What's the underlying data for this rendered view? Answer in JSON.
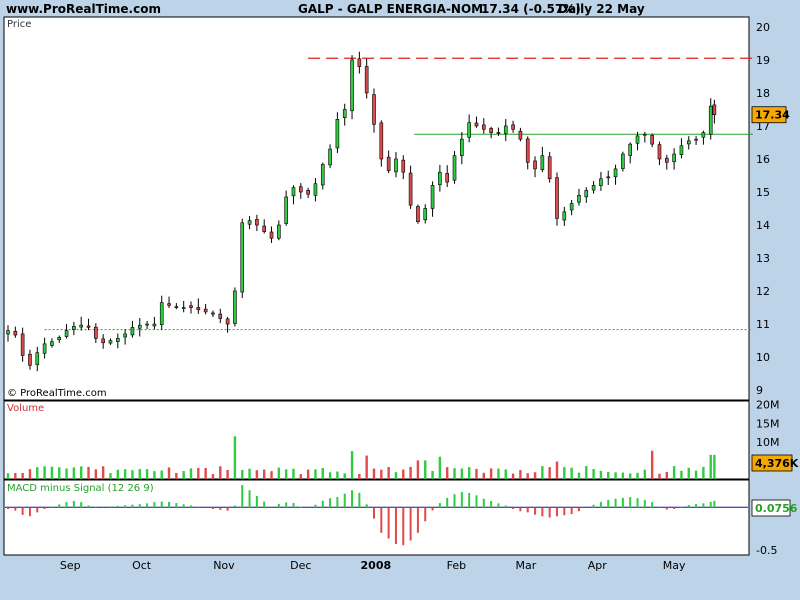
{
  "header": {
    "site": "www.ProRealTime.com",
    "instrument": "GALP - GALP ENERGIA-NOM",
    "quote": "17.34 (-0.57%)",
    "period": "Daily  22 May"
  },
  "watermark": "© ProRealTime.com",
  "colors": {
    "background": "#bcd3e8",
    "panel": "#ffffff",
    "up": "#2ecc40",
    "down": "#e04a4a",
    "resistance": "#e02020",
    "support": "#2aa02a",
    "signal_line": "#1010a0",
    "badge": "#f5a800"
  },
  "chart_data": [
    {
      "type": "candlestick",
      "panel": "price",
      "label": "Price",
      "ylim": [
        8.7,
        20.3
      ],
      "yticks": [
        "20",
        "19",
        "18",
        "17",
        "16",
        "15",
        "14",
        "13",
        "12",
        "11",
        "10",
        "9"
      ],
      "last_value_badge": "17.34",
      "x_months": [
        "Sep",
        "Oct",
        "Nov",
        "Dec",
        "2008",
        "Feb",
        "Mar",
        "Apr",
        "May"
      ],
      "reference_lines": [
        {
          "style": "dashed",
          "color": "resistance",
          "value": 19.05
        },
        {
          "style": "solid",
          "color": "support",
          "value": 16.75
        },
        {
          "style": "dotted",
          "color": "support",
          "value": 10.83
        }
      ],
      "close_path": [
        [
          0,
          10.8
        ],
        [
          6,
          10.6
        ],
        [
          10,
          9.5
        ],
        [
          14,
          10.0
        ],
        [
          20,
          10.4
        ],
        [
          26,
          10.5
        ],
        [
          32,
          10.8
        ],
        [
          38,
          11.0
        ],
        [
          44,
          10.9
        ],
        [
          50,
          10.4
        ],
        [
          56,
          10.5
        ],
        [
          62,
          10.6
        ],
        [
          68,
          10.9
        ],
        [
          74,
          11.0
        ],
        [
          80,
          11.0
        ],
        [
          82,
          11.7
        ],
        [
          86,
          11.6
        ],
        [
          92,
          11.5
        ],
        [
          100,
          11.5
        ],
        [
          106,
          11.4
        ],
        [
          112,
          11.3
        ],
        [
          118,
          11.1
        ],
        [
          122,
          10.9
        ],
        [
          124,
          12.0
        ],
        [
          125,
          15.2
        ],
        [
          127,
          14.0
        ],
        [
          130,
          14.2
        ],
        [
          136,
          14.0
        ],
        [
          140,
          13.8
        ],
        [
          146,
          13.5
        ],
        [
          150,
          14.5
        ],
        [
          154,
          15.2
        ],
        [
          160,
          15.0
        ],
        [
          166,
          14.9
        ],
        [
          170,
          15.6
        ],
        [
          176,
          16.3
        ],
        [
          180,
          17.2
        ],
        [
          182,
          17.0
        ],
        [
          186,
          18.0
        ],
        [
          188,
          19.0
        ],
        [
          190,
          19.4
        ],
        [
          192,
          18.8
        ],
        [
          194,
          18.5
        ],
        [
          196,
          18.0
        ],
        [
          198,
          17.6
        ],
        [
          202,
          16.5
        ],
        [
          206,
          15.5
        ],
        [
          210,
          15.8
        ],
        [
          214,
          16.2
        ],
        [
          218,
          15.0
        ],
        [
          222,
          14.2
        ],
        [
          224,
          14.1
        ],
        [
          228,
          14.5
        ],
        [
          232,
          15.2
        ],
        [
          236,
          15.6
        ],
        [
          240,
          15.3
        ],
        [
          244,
          16.1
        ],
        [
          248,
          16.6
        ],
        [
          252,
          17.1
        ],
        [
          256,
          17.0
        ],
        [
          260,
          16.9
        ],
        [
          264,
          16.8
        ],
        [
          268,
          16.8
        ],
        [
          272,
          17.0
        ],
        [
          276,
          16.9
        ],
        [
          280,
          16.6
        ],
        [
          284,
          15.9
        ],
        [
          288,
          15.7
        ],
        [
          292,
          16.1
        ],
        [
          296,
          15.4
        ],
        [
          300,
          14.2
        ],
        [
          302,
          14.3
        ],
        [
          306,
          14.5
        ],
        [
          310,
          14.8
        ],
        [
          314,
          15.0
        ],
        [
          318,
          15.1
        ],
        [
          322,
          15.3
        ],
        [
          326,
          15.5
        ],
        [
          330,
          15.4
        ],
        [
          334,
          16.0
        ],
        [
          338,
          16.3
        ],
        [
          342,
          16.6
        ],
        [
          346,
          16.8
        ],
        [
          350,
          16.7
        ],
        [
          354,
          16.2
        ],
        [
          358,
          15.8
        ],
        [
          362,
          16.0
        ],
        [
          366,
          16.3
        ],
        [
          370,
          16.5
        ],
        [
          374,
          16.6
        ],
        [
          378,
          16.6
        ],
        [
          380,
          16.8
        ],
        [
          384,
          17.6
        ],
        [
          386,
          17.34
        ]
      ]
    },
    {
      "type": "bar",
      "panel": "volume",
      "label": "Volume",
      "ylim": [
        0,
        21
      ],
      "yticks": [
        "20M",
        "15M",
        "10M"
      ],
      "last_value_badge": "4,376K",
      "spikes": [
        {
          "t": 124,
          "value": 21.0
        },
        {
          "t": 125,
          "value": 11.5
        },
        {
          "t": 188,
          "value": 7.5
        },
        {
          "t": 196,
          "value": 6.3
        },
        {
          "t": 226,
          "value": 5.0
        },
        {
          "t": 236,
          "value": 6.0
        },
        {
          "t": 300,
          "value": 4.7
        },
        {
          "t": 352,
          "value": 7.6
        },
        {
          "t": 384,
          "value": 6.5
        }
      ]
    },
    {
      "type": "histogram",
      "panel": "macd",
      "label": "MACD minus Signal (12 26 9)",
      "ylim": [
        -0.56,
        0.32
      ],
      "yticks": [
        "-0.5"
      ],
      "last_value_badge": "0.0756",
      "path": [
        [
          0,
          -0.02
        ],
        [
          6,
          -0.05
        ],
        [
          10,
          -0.13
        ],
        [
          14,
          -0.08
        ],
        [
          20,
          -0.02
        ],
        [
          26,
          0.02
        ],
        [
          32,
          0.06
        ],
        [
          38,
          0.08
        ],
        [
          44,
          0.02
        ],
        [
          50,
          -0.01
        ],
        [
          56,
          0.01
        ],
        [
          62,
          0.02
        ],
        [
          68,
          0.03
        ],
        [
          74,
          0.04
        ],
        [
          80,
          0.06
        ],
        [
          86,
          0.07
        ],
        [
          92,
          0.05
        ],
        [
          100,
          0.02
        ],
        [
          106,
          0.0
        ],
        [
          112,
          -0.02
        ],
        [
          120,
          -0.04
        ],
        [
          124,
          0.02
        ],
        [
          128,
          0.26
        ],
        [
          132,
          0.2
        ],
        [
          138,
          0.1
        ],
        [
          144,
          0.0
        ],
        [
          150,
          0.06
        ],
        [
          156,
          0.05
        ],
        [
          162,
          -0.02
        ],
        [
          168,
          0.03
        ],
        [
          174,
          0.1
        ],
        [
          180,
          0.12
        ],
        [
          186,
          0.18
        ],
        [
          190,
          0.22
        ],
        [
          194,
          0.12
        ],
        [
          198,
          -0.05
        ],
        [
          204,
          -0.3
        ],
        [
          210,
          -0.4
        ],
        [
          214,
          -0.46
        ],
        [
          218,
          -0.43
        ],
        [
          222,
          -0.35
        ],
        [
          226,
          -0.25
        ],
        [
          230,
          -0.08
        ],
        [
          236,
          0.05
        ],
        [
          242,
          0.14
        ],
        [
          248,
          0.18
        ],
        [
          254,
          0.16
        ],
        [
          260,
          0.1
        ],
        [
          266,
          0.06
        ],
        [
          272,
          0.02
        ],
        [
          278,
          -0.04
        ],
        [
          284,
          -0.06
        ],
        [
          290,
          -0.1
        ],
        [
          296,
          -0.12
        ],
        [
          302,
          -0.1
        ],
        [
          308,
          -0.08
        ],
        [
          314,
          -0.03
        ],
        [
          320,
          0.03
        ],
        [
          326,
          0.08
        ],
        [
          332,
          0.1
        ],
        [
          340,
          0.12
        ],
        [
          346,
          0.1
        ],
        [
          352,
          0.06
        ],
        [
          358,
          -0.03
        ],
        [
          364,
          -0.02
        ],
        [
          370,
          0.02
        ],
        [
          376,
          0.04
        ],
        [
          382,
          0.05
        ],
        [
          386,
          0.0756
        ]
      ]
    }
  ]
}
